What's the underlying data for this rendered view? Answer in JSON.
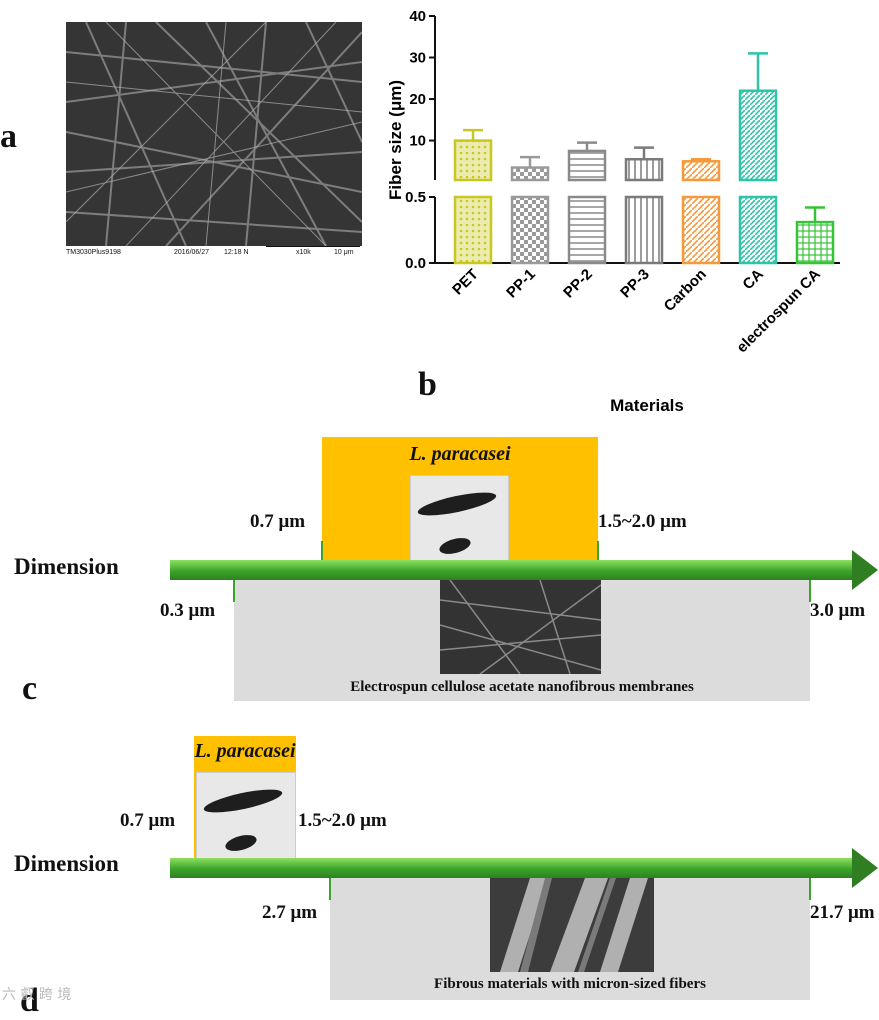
{
  "panels": {
    "a": "a",
    "b": "b",
    "c": "c",
    "d": "d"
  },
  "sem_meta": {
    "id": "TM3030Plus9198",
    "date": "2016/06/27",
    "time": "12:18 N",
    "mag": "x10k",
    "scale": "10 μm"
  },
  "chart_data": {
    "type": "bar",
    "xlabel": "Materials",
    "ylabel": "Fiber size (μm)",
    "categories": [
      "PET",
      "PP-1",
      "PP-2",
      "PP-3",
      "Carbon",
      "CA",
      "electrospun CA"
    ],
    "values": [
      10.0,
      3.5,
      7.5,
      5.5,
      5.0,
      22.0,
      0.31
    ],
    "errors": [
      2.5,
      2.5,
      2.0,
      2.8,
      0.5,
      9.0,
      0.11
    ],
    "colors": [
      "#c8c820",
      "#9a9a9a",
      "#8a8a8a",
      "#7a7a7a",
      "#f59a3c",
      "#2ec4a8",
      "#36c436"
    ],
    "patterns": [
      "dots",
      "checker",
      "hlines",
      "vlines",
      "diag",
      "diag-dense",
      "grid"
    ],
    "broken_axis": {
      "lower": [
        0,
        0.5
      ],
      "upper": [
        0.5,
        40
      ]
    },
    "yticks_lower": [
      "0.0",
      "0.5"
    ],
    "yticks_upper": [
      "10",
      "20",
      "30",
      "40"
    ],
    "yticks_lower_values": [
      0,
      0.5
    ],
    "yticks_upper_values": [
      10,
      20,
      30,
      40
    ]
  },
  "diagram_c": {
    "organism": "L. paracasei",
    "left_bact": "0.7 μm",
    "right_bact": "1.5~2.0 μm",
    "dimension": "Dimension",
    "left_fiber": "0.3 μm",
    "right_fiber": "3.0 μm",
    "caption": "Electrospun cellulose acetate nanofibrous membranes"
  },
  "diagram_d": {
    "organism": "L. paracasei",
    "left_bact": "0.7 μm",
    "right_bact": "1.5~2.0 μm",
    "dimension": "Dimension",
    "left_fiber": "2.7 μm",
    "right_fiber": "21.7 μm",
    "caption": "Fibrous materials with micron-sized fibers"
  },
  "watermark": "六 叡 跨 境"
}
